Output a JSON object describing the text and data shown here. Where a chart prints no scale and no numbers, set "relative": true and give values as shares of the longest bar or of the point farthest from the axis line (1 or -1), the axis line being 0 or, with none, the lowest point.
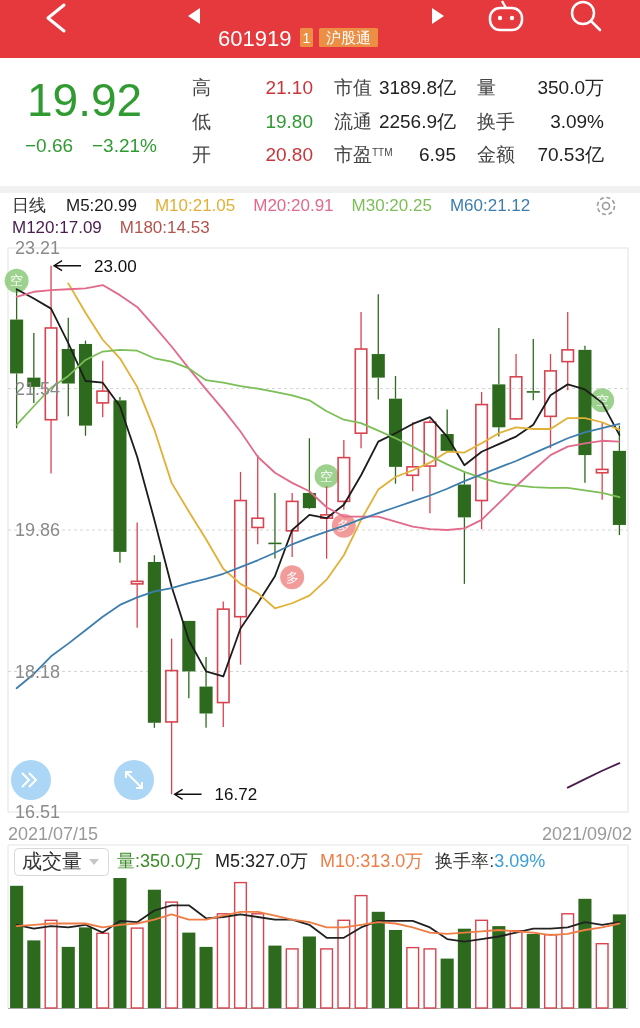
{
  "chart_data": [
    {
      "type": "other",
      "annotations": [
        "601919",
        "1",
        "沪股通",
        "19.92",
        "−0.66",
        "−3.21%",
        "高",
        "21.10",
        "低",
        "19.80",
        "开",
        "20.80",
        "市值",
        "3189.8亿",
        "流通",
        "2256.9亿",
        "市盈$^{TTM}$",
        "6.95",
        "量",
        "350.0万",
        "换手",
        "3.09%",
        "金额",
        "70.53亿"
      ]
    },
    {
      "type": "candlestick",
      "title": "日线",
      "legend": "top left",
      "grid": "y",
      "categories": [
        null,
        null,
        null,
        null,
        null,
        null,
        null,
        null,
        null,
        null,
        null,
        null,
        null,
        null,
        null,
        null,
        null,
        null,
        null,
        null,
        null,
        null,
        null,
        null,
        null,
        null,
        null,
        null,
        null,
        null,
        null,
        null,
        null,
        null,
        null,
        null
      ],
      "ohlc": [
        [
          22.36,
          22.71,
          21.07,
          21.72
        ],
        [
          21.67,
          22.2,
          21.37,
          21.56
        ],
        [
          21.17,
          23.0,
          20.53,
          22.26
        ],
        [
          22.01,
          22.38,
          21.21,
          21.6
        ],
        [
          22.07,
          22.11,
          20.98,
          21.1
        ],
        [
          21.37,
          21.87,
          21.2,
          21.51
        ],
        [
          21.4,
          21.44,
          19.47,
          19.6
        ],
        [
          19.22,
          19.95,
          18.7,
          19.25
        ],
        [
          19.48,
          19.56,
          17.51,
          17.57
        ],
        [
          17.58,
          18.57,
          16.72,
          18.19
        ],
        [
          18.78,
          18.78,
          17.86,
          18.18
        ],
        [
          18.0,
          18.35,
          17.51,
          17.68
        ],
        [
          17.81,
          19.01,
          17.52,
          18.92
        ],
        [
          18.83,
          20.55,
          18.26,
          20.21
        ],
        [
          19.89,
          20.75,
          19.69,
          20.0
        ],
        [
          19.71,
          20.3,
          19.52,
          19.7
        ],
        [
          19.85,
          20.3,
          19.54,
          20.2
        ],
        [
          20.3,
          20.95,
          20.11,
          20.12
        ],
        [
          20.0,
          20.38,
          19.52,
          20.04
        ],
        [
          20.2,
          20.93,
          20.1,
          20.72
        ],
        [
          21.01,
          22.45,
          20.83,
          22.01
        ],
        [
          21.95,
          22.66,
          21.41,
          21.67
        ],
        [
          21.42,
          21.69,
          20.41,
          20.61
        ],
        [
          20.51,
          21.14,
          20.32,
          20.61
        ],
        [
          20.62,
          21.17,
          20.06,
          21.14
        ],
        [
          21.0,
          21.29,
          20.8,
          20.8
        ],
        [
          20.4,
          20.55,
          19.22,
          20.01
        ],
        [
          20.21,
          21.5,
          19.87,
          21.35
        ],
        [
          21.59,
          22.26,
          20.97,
          21.08
        ],
        [
          21.18,
          21.95,
          21.17,
          21.68
        ],
        [
          21.51,
          22.13,
          21.4,
          21.5
        ],
        [
          21.21,
          21.95,
          20.83,
          21.75
        ],
        [
          21.86,
          22.45,
          21.52,
          22.0
        ],
        [
          22.0,
          22.05,
          20.42,
          20.75
        ],
        [
          20.54,
          21.13,
          20.22,
          20.58
        ],
        [
          20.8,
          21.1,
          19.8,
          19.92
        ]
      ],
      "colors": [
        "#2d6a1e",
        "#2d6a1e",
        "#d9434f",
        "#2d6a1e",
        "#2d6a1e",
        "#d9434f",
        "#2d6a1e",
        "#d9434f",
        "#2d6a1e",
        "#d9434f",
        "#2d6a1e",
        "#2d6a1e",
        "#d9434f",
        "#d9434f",
        "#d9434f",
        "#2d6a1e",
        "#d9434f",
        "#2d6a1e",
        "#d9434f",
        "#d9434f",
        "#d9434f",
        "#2d6a1e",
        "#2d6a1e",
        "#d9434f",
        "#d9434f",
        "#2d6a1e",
        "#2d6a1e",
        "#d9434f",
        "#2d6a1e",
        "#d9434f",
        "#2d6a1e",
        "#d9434f",
        "#d9434f",
        "#2d6a1e",
        "#d9434f",
        "#2d6a1e"
      ],
      "series": [
        {
          "name": "M5:20.99",
          "type": "line",
          "color": "#1c1c1c",
          "values": [
            22.72,
            22.61,
            22.49,
            22.08,
            21.63,
            21.61,
            21.33,
            20.73,
            19.98,
            19.19,
            18.55,
            18.18,
            18.12,
            18.69,
            18.99,
            19.31,
            19.86,
            20.04,
            20.0,
            20.16,
            20.51,
            20.91,
            21.01,
            21.12,
            21.2,
            20.97,
            20.63,
            20.79,
            20.88,
            20.97,
            21.11,
            21.46,
            21.59,
            21.53,
            21.37,
            20.99
          ]
        },
        {
          "name": "M10:21.05",
          "type": "line",
          "color": "#e3b036",
          "values": [
            null,
            null,
            null,
            22.79,
            22.44,
            22.12,
            21.9,
            21.56,
            21.05,
            20.42,
            20.08,
            19.75,
            19.4,
            19.22,
            19.11,
            18.93,
            18.99,
            19.08,
            19.27,
            19.56,
            19.98,
            20.34,
            20.49,
            20.57,
            20.66,
            20.79,
            20.78,
            20.89,
            21.01,
            21.08,
            21.06,
            21.06,
            21.19,
            21.19,
            21.14,
            21.05
          ]
        },
        {
          "name": "M20:20.91",
          "type": "line",
          "color": "#e26a8a",
          "values": [
            22.63,
            22.69,
            22.71,
            22.72,
            22.73,
            22.77,
            22.65,
            22.51,
            22.28,
            22.04,
            21.78,
            21.53,
            21.29,
            21.03,
            20.73,
            20.54,
            20.42,
            20.32,
            20.13,
            20.02,
            20.02,
            20.02,
            19.96,
            19.9,
            19.87,
            19.86,
            19.88,
            19.98,
            20.18,
            20.38,
            20.57,
            20.75,
            20.85,
            20.89,
            20.92,
            20.91
          ]
        },
        {
          "name": "M30:20.25",
          "type": "line",
          "color": "#7cbf57",
          "values": [
            21.11,
            21.33,
            21.55,
            21.69,
            21.88,
            21.98,
            22.0,
            21.99,
            21.9,
            21.86,
            21.78,
            21.64,
            21.61,
            21.57,
            21.54,
            21.5,
            21.46,
            21.4,
            21.27,
            21.17,
            21.13,
            21.04,
            20.95,
            20.85,
            20.74,
            20.64,
            20.55,
            20.48,
            20.42,
            20.39,
            20.37,
            20.36,
            20.36,
            20.33,
            20.3,
            20.25
          ]
        },
        {
          "name": "M60:21.12",
          "type": "line",
          "color": "#3d7eaf",
          "values": [
            17.98,
            18.15,
            18.36,
            18.51,
            18.67,
            18.83,
            18.97,
            19.06,
            19.13,
            19.17,
            19.23,
            19.28,
            19.34,
            19.42,
            19.5,
            19.59,
            19.69,
            19.77,
            19.84,
            19.91,
            19.99,
            20.06,
            20.13,
            20.2,
            20.27,
            20.35,
            20.44,
            20.52,
            20.6,
            20.68,
            20.77,
            20.86,
            20.95,
            21.02,
            21.07,
            21.12
          ]
        },
        {
          "name": "M120:17.09",
          "type": "line",
          "color": "#4a1d4e",
          "values": [
            null,
            null,
            null,
            null,
            null,
            null,
            null,
            null,
            null,
            null,
            null,
            null,
            null,
            null,
            null,
            null,
            null,
            null,
            null,
            null,
            null,
            null,
            null,
            null,
            null,
            null,
            null,
            null,
            null,
            null,
            null,
            null,
            16.8,
            16.9,
            17.0,
            17.09
          ]
        },
        {
          "name": "M180:14.53",
          "type": "line",
          "color": "#b4534d",
          "values": [
            null,
            null,
            null,
            null,
            null,
            null,
            null,
            null,
            null,
            null,
            null,
            null,
            null,
            null,
            null,
            null,
            null,
            null,
            null,
            null,
            null,
            null,
            null,
            null,
            null,
            null,
            null,
            null,
            null,
            null,
            null,
            null,
            null,
            null,
            null,
            null
          ]
        },
        {
          "type": "scatter",
          "color": "#8cc97a",
          "values": [
            22.82,
            null,
            null,
            null,
            null,
            null,
            null,
            null,
            null,
            null,
            null,
            null,
            null,
            null,
            null,
            null,
            null,
            null,
            20.5,
            null,
            null,
            null,
            null,
            null,
            null,
            null,
            null,
            null,
            null,
            null,
            null,
            null,
            null,
            null,
            21.4,
            null
          ],
          "value_labels": [
            "空",
            null,
            null,
            null,
            null,
            null,
            null,
            null,
            null,
            null,
            null,
            null,
            null,
            null,
            null,
            null,
            null,
            null,
            "空",
            null,
            null,
            null,
            null,
            null,
            null,
            null,
            null,
            null,
            null,
            null,
            null,
            null,
            null,
            null,
            "空",
            null
          ]
        },
        {
          "type": "scatter",
          "color": "#f08a8a",
          "values": [
            null,
            null,
            null,
            null,
            null,
            null,
            null,
            null,
            null,
            null,
            null,
            null,
            null,
            null,
            null,
            null,
            19.3,
            null,
            null,
            19.91,
            null,
            null,
            null,
            null,
            null,
            null,
            null,
            null,
            null,
            null,
            null,
            null,
            null,
            null,
            null,
            null
          ],
          "value_labels": [
            null,
            null,
            null,
            null,
            null,
            null,
            null,
            null,
            null,
            null,
            null,
            null,
            null,
            null,
            null,
            null,
            "多",
            null,
            null,
            "多",
            null,
            null,
            null,
            null,
            null,
            null,
            null,
            null,
            null,
            null,
            null,
            null,
            null,
            null,
            null,
            null
          ]
        }
      ],
      "ylim": [
        16.51,
        23.21
      ],
      "yticks": [
        16.51,
        18.18,
        19.86,
        21.54,
        23.21
      ],
      "annotations": [
        "23.00",
        "16.72",
        "2021/07/15",
        "2021/09/02"
      ]
    },
    {
      "type": "bar",
      "title": "成交量",
      "legend": "top left",
      "relative": true,
      "categories": [
        null,
        null,
        null,
        null,
        null,
        null,
        null,
        null,
        null,
        null,
        null,
        null,
        null,
        null,
        null,
        null,
        null,
        null,
        null,
        null,
        null,
        null,
        null,
        null,
        null,
        null,
        null,
        null,
        null,
        null,
        null,
        null,
        null,
        null,
        null,
        null
      ],
      "series": [
        {
          "name": "量:350.0万",
          "type": "bar",
          "color": "#3a8a28",
          "values": [
            0.94,
            0.52,
            0.68,
            0.47,
            0.62,
            0.58,
            1,
            0.62,
            0.91,
            0.82,
            0.58,
            0.47,
            0.73,
            0.97,
            0.73,
            0.48,
            0.46,
            0.55,
            0.46,
            0.68,
            0.87,
            0.74,
            0.6,
            0.47,
            0.46,
            0.38,
            0.61,
            0.68,
            0.63,
            0.6,
            0.57,
            0.57,
            0.73,
            0.84,
            0.5,
            0.72
          ],
          "colors": [
            "#2d6a1e",
            "#2d6a1e",
            "#d9434f",
            "#2d6a1e",
            "#2d6a1e",
            "#d9434f",
            "#2d6a1e",
            "#d9434f",
            "#2d6a1e",
            "#d9434f",
            "#2d6a1e",
            "#2d6a1e",
            "#d9434f",
            "#d9434f",
            "#d9434f",
            "#2d6a1e",
            "#d9434f",
            "#2d6a1e",
            "#d9434f",
            "#d9434f",
            "#d9434f",
            "#2d6a1e",
            "#2d6a1e",
            "#d9434f",
            "#d9434f",
            "#2d6a1e",
            "#2d6a1e",
            "#d9434f",
            "#2d6a1e",
            "#d9434f",
            "#2d6a1e",
            "#d9434f",
            "#d9434f",
            "#2d6a1e",
            "#d9434f",
            "#2d6a1e"
          ]
        },
        {
          "name": "M5:327.0万",
          "type": "line",
          "color": "#222222",
          "values": [
            0.64,
            0.61,
            0.63,
            0.62,
            0.64,
            0.58,
            0.67,
            0.66,
            0.75,
            0.79,
            0.79,
            0.69,
            0.7,
            0.72,
            0.7,
            0.68,
            0.68,
            0.64,
            0.54,
            0.54,
            0.62,
            0.67,
            0.67,
            0.67,
            0.62,
            0.53,
            0.51,
            0.53,
            0.55,
            0.58,
            0.61,
            0.61,
            0.62,
            0.66,
            0.64,
            0.66
          ]
        },
        {
          "name": "M10:313.0万",
          "type": "line",
          "color": "#ef7d45",
          "values": [
            0.63,
            0.64,
            0.65,
            0.65,
            0.65,
            0.62,
            0.64,
            0.65,
            0.68,
            0.72,
            0.68,
            0.68,
            0.71,
            0.74,
            0.74,
            0.71,
            0.68,
            0.66,
            0.62,
            0.62,
            0.64,
            0.66,
            0.65,
            0.62,
            0.58,
            0.57,
            0.58,
            0.59,
            0.6,
            0.59,
            0.58,
            0.56,
            0.57,
            0.6,
            0.62,
            0.65
          ]
        }
      ],
      "annotations": [
        "换手率:",
        "3.09%"
      ]
    }
  ]
}
